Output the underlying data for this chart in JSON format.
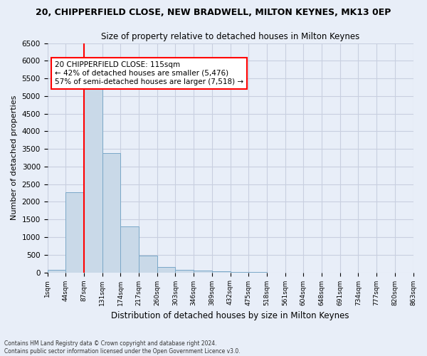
{
  "title": "20, CHIPPERFIELD CLOSE, NEW BRADWELL, MILTON KEYNES, MK13 0EP",
  "subtitle": "Size of property relative to detached houses in Milton Keynes",
  "xlabel": "Distribution of detached houses by size in Milton Keynes",
  "ylabel": "Number of detached properties",
  "footnote": "Contains HM Land Registry data © Crown copyright and database right 2024.\nContains public sector information licensed under the Open Government Licence v3.0.",
  "bin_labels": [
    "1sqm",
    "44sqm",
    "87sqm",
    "131sqm",
    "174sqm",
    "217sqm",
    "260sqm",
    "303sqm",
    "346sqm",
    "389sqm",
    "432sqm",
    "475sqm",
    "518sqm",
    "561sqm",
    "604sqm",
    "648sqm",
    "691sqm",
    "734sqm",
    "777sqm",
    "820sqm",
    "863sqm"
  ],
  "bar_values": [
    70,
    2280,
    5430,
    3380,
    1310,
    470,
    155,
    75,
    60,
    35,
    10,
    5,
    0,
    0,
    0,
    0,
    0,
    0,
    0,
    0
  ],
  "bar_color": "#c9d9e8",
  "bar_edge_color": "#7aa8c8",
  "vline_x_index": 2.0,
  "annotation_text": "20 CHIPPERFIELD CLOSE: 115sqm\n← 42% of detached houses are smaller (5,476)\n57% of semi-detached houses are larger (7,518) →",
  "annotation_box_color": "white",
  "annotation_box_edge_color": "red",
  "vline_color": "red",
  "ylim": [
    0,
    6500
  ],
  "yticks": [
    0,
    500,
    1000,
    1500,
    2000,
    2500,
    3000,
    3500,
    4000,
    4500,
    5000,
    5500,
    6000,
    6500
  ],
  "grid_color": "#c8cfe0",
  "bg_color": "#e8eef8"
}
